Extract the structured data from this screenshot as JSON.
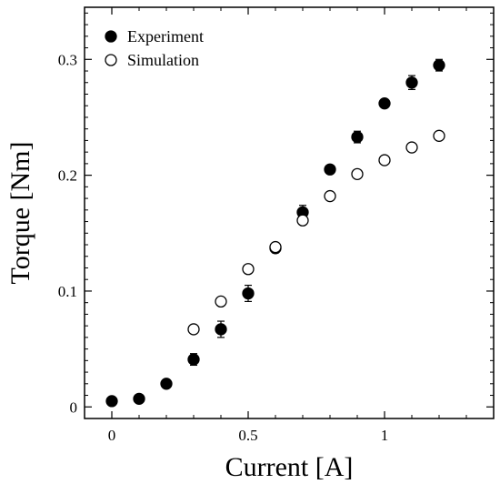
{
  "chart_data": {
    "type": "scatter",
    "xlabel": "Current [A]",
    "ylabel": "Torque [Nm]",
    "xlim": [
      -0.1,
      1.4
    ],
    "ylim": [
      -0.01,
      0.345
    ],
    "xticks": [
      0,
      0.5,
      1
    ],
    "xtick_labels": [
      "0",
      "0.5",
      "1"
    ],
    "yticks": [
      0,
      0.1,
      0.2,
      0.3
    ],
    "ytick_labels": [
      "0",
      "0.1",
      "0.2",
      "0.3"
    ],
    "legend_position": "top-left",
    "grid": false,
    "series": [
      {
        "name": "Experiment",
        "marker": "filled-circle",
        "color": "#000000",
        "x": [
          0,
          0.1,
          0.2,
          0.3,
          0.4,
          0.5,
          0.6,
          0.7,
          0.8,
          0.9,
          1.0,
          1.1,
          1.2
        ],
        "y": [
          0.005,
          0.007,
          0.02,
          0.041,
          0.067,
          0.098,
          0.137,
          0.168,
          0.205,
          0.233,
          0.262,
          0.28,
          0.295
        ],
        "err": [
          0.002,
          0.002,
          0.003,
          0.005,
          0.007,
          0.007,
          0.004,
          0.006,
          0.003,
          0.005,
          0.003,
          0.006,
          0.005
        ]
      },
      {
        "name": "Simulation",
        "marker": "open-circle",
        "color": "#000000",
        "x": [
          0.3,
          0.4,
          0.5,
          0.6,
          0.7,
          0.8,
          0.9,
          1.0,
          1.1,
          1.2
        ],
        "y": [
          0.067,
          0.091,
          0.119,
          0.138,
          0.161,
          0.182,
          0.201,
          0.213,
          0.224,
          0.234
        ]
      }
    ]
  }
}
